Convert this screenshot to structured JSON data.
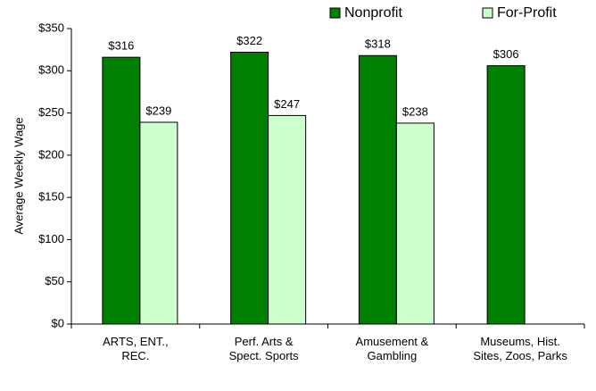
{
  "chart_data": {
    "type": "bar",
    "ylabel": "Average Weekly Wage",
    "categories": [
      "ARTS, ENT., REC.",
      "Perf. Arts & Spect. Sports",
      "Amusement & Gambling",
      "Museums, Hist. Sites, Zoos, Parks"
    ],
    "series": [
      {
        "name": "Nonprofit",
        "color": "#008000",
        "values": [
          316,
          322,
          318,
          306
        ],
        "value_labels": [
          "$316",
          "$322",
          "$318",
          "$306"
        ]
      },
      {
        "name": "For-Profit",
        "color": "#ccffcc",
        "values": [
          239,
          247,
          238,
          null
        ],
        "value_labels": [
          "$239",
          "$247",
          "$238",
          null
        ]
      }
    ],
    "ylim": [
      0,
      350
    ],
    "yticks": [
      {
        "value": 0,
        "label": "$0"
      },
      {
        "value": 50,
        "label": "$50"
      },
      {
        "value": 100,
        "label": "$100"
      },
      {
        "value": 150,
        "label": "$150"
      },
      {
        "value": 200,
        "label": "$200"
      },
      {
        "value": 250,
        "label": "$250"
      },
      {
        "value": 300,
        "label": "$300"
      },
      {
        "value": 350,
        "label": "$350"
      }
    ],
    "legend": "top-right"
  }
}
